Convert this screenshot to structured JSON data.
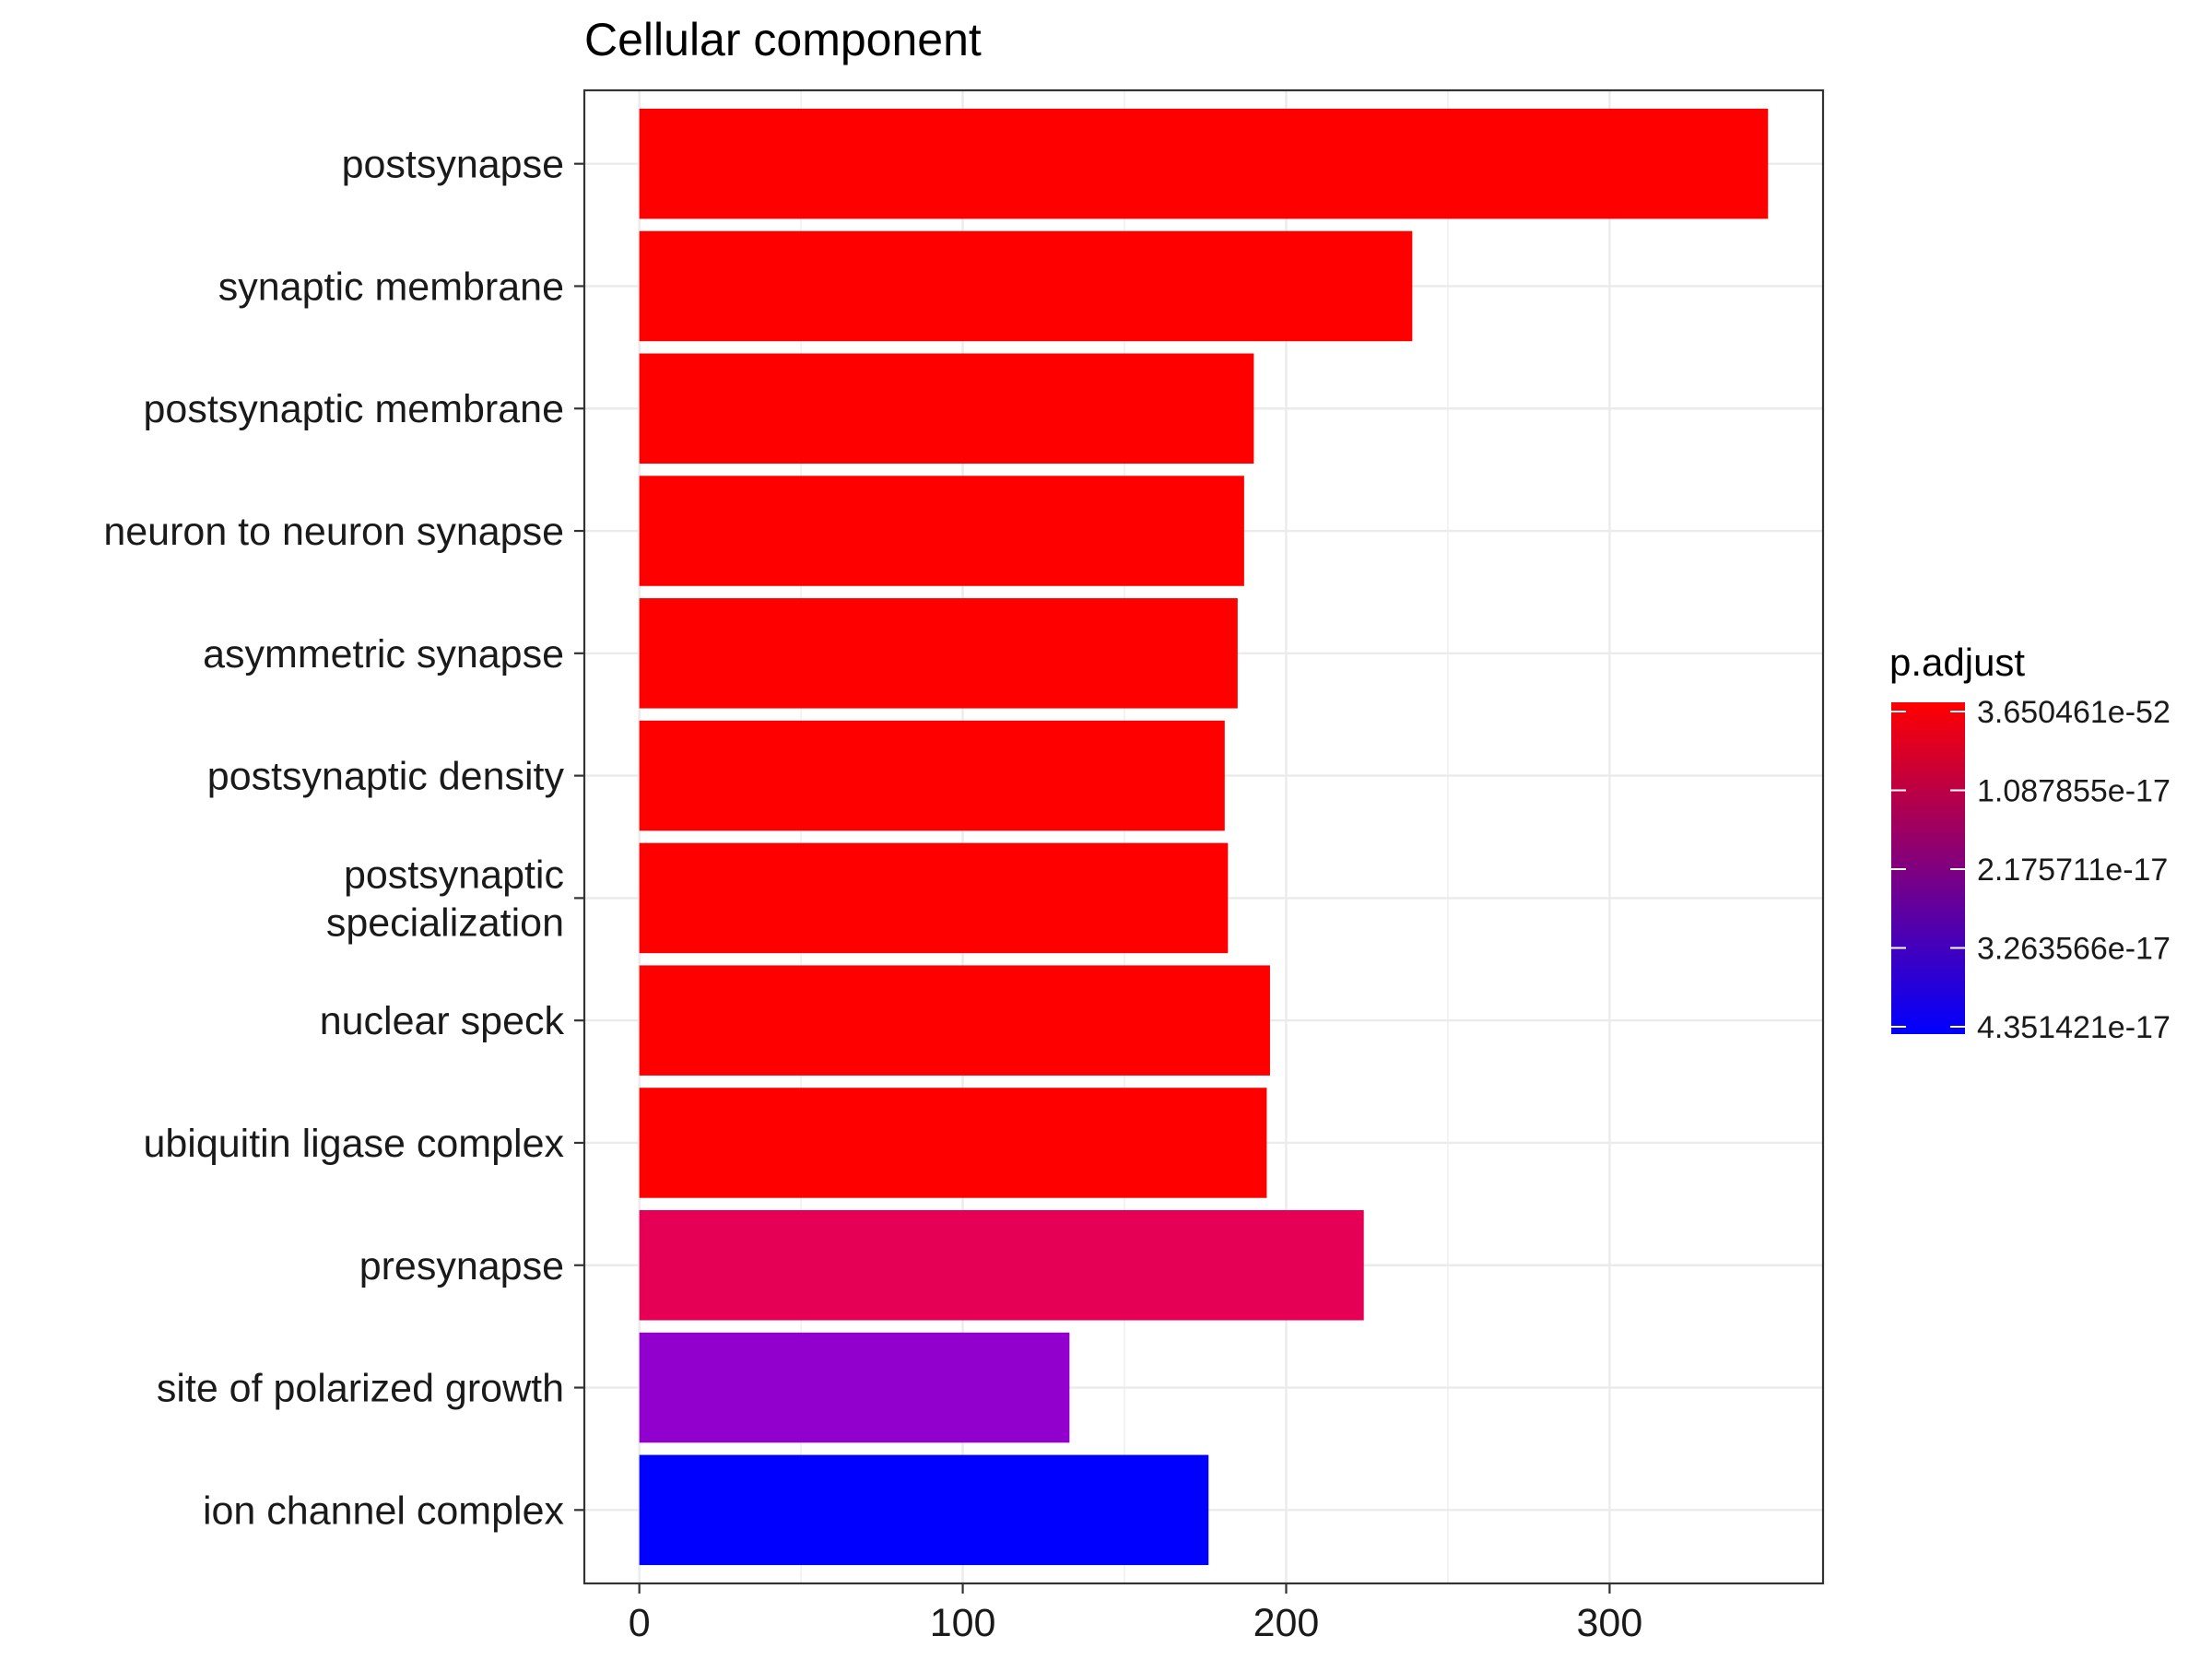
{
  "chart_data": {
    "type": "bar",
    "orientation": "horizontal",
    "title": "Cellular component",
    "xlabel": "",
    "ylabel": "",
    "xlim": [
      -17,
      366
    ],
    "x_ticks": [
      0,
      100,
      200,
      300
    ],
    "grid": true,
    "legend_position": "right",
    "categories": [
      "postsynapse",
      "synaptic membrane",
      "postsynaptic membrane",
      "neuron to neuron synapse",
      "asymmetric synapse",
      "postsynaptic density",
      "postsynaptic specialization",
      "nuclear speck",
      "ubiquitin ligase complex",
      "presynapse",
      "site of polarized growth",
      "ion channel complex"
    ],
    "category_lines": [
      [
        "postsynapse"
      ],
      [
        "synaptic membrane"
      ],
      [
        "postsynaptic membrane"
      ],
      [
        "neuron to neuron synapse"
      ],
      [
        "asymmetric synapse"
      ],
      [
        "postsynaptic density"
      ],
      [
        "postsynaptic",
        "specialization"
      ],
      [
        "nuclear speck"
      ],
      [
        "ubiquitin ligase complex"
      ],
      [
        "presynapse"
      ],
      [
        "site of polarized growth"
      ],
      [
        "ion channel complex"
      ]
    ],
    "values": [
      349,
      239,
      190,
      187,
      185,
      181,
      182,
      195,
      194,
      224,
      133,
      176
    ],
    "p_adjust": [
      3.650461e-52,
      3.650461e-52,
      3.650461e-52,
      3.650461e-52,
      3.650461e-52,
      3.650461e-52,
      3.650461e-52,
      3.650461e-52,
      3.650461e-52,
      1.3e-17,
      2.9e-17,
      4.351421e-17
    ],
    "bar_colors": [
      "#FF0000",
      "#FF0000",
      "#FF0000",
      "#FF0000",
      "#FF0000",
      "#FF0000",
      "#FF0000",
      "#FF0000",
      "#FF0000",
      "#E60055",
      "#9200CE",
      "#0000FF"
    ],
    "colorbar": {
      "title": "p.adjust",
      "low_color": "#FF0000",
      "high_color": "#0000FF",
      "min": 3.650461e-52,
      "max": 4.351421e-17,
      "tick_values": [
        3.650461e-52,
        1.087855e-17,
        2.175711e-17,
        3.263566e-17,
        4.351421e-17
      ],
      "tick_labels": [
        "3.650461e-52",
        "1.087855e-17",
        "2.175711e-17",
        "3.263566e-17",
        "4.351421e-17"
      ]
    }
  }
}
